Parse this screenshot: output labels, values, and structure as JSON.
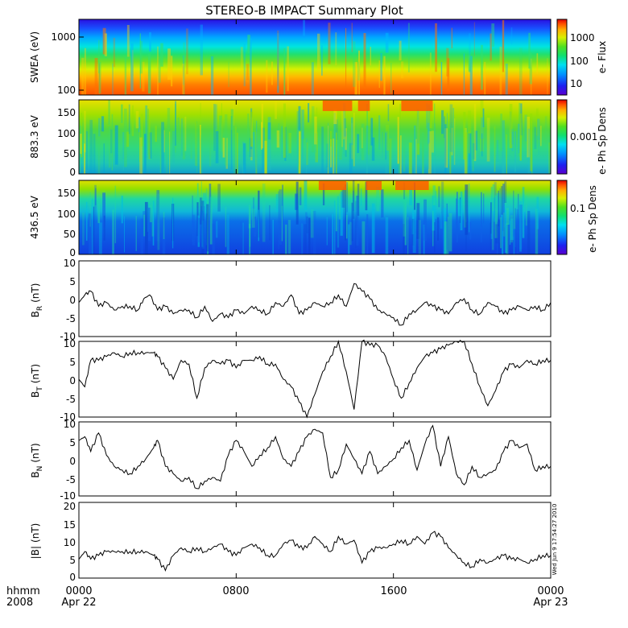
{
  "title": "STEREO-B IMPACT Summary Plot",
  "timestamp": "Wed Jun  9 17:54:27 2010",
  "time_axis": {
    "row1": [
      "hhmm",
      "0000",
      "0800",
      "1600",
      "0000"
    ],
    "row2": [
      "2008",
      "Apr 22",
      "Apr 23"
    ]
  },
  "chart_data": [
    {
      "type": "heatmap",
      "name": "swea",
      "ylabel": "SWEA (eV)",
      "scale": "log",
      "ylim": [
        95,
        2200
      ],
      "yticks": [
        "1000",
        "100"
      ],
      "colorbar_label": "e- Flux",
      "colorbar_ticks": [
        "1000",
        "100",
        "10"
      ],
      "x_range_hours": [
        0,
        24
      ]
    },
    {
      "type": "heatmap",
      "name": "pad883",
      "ylabel": "883.3 eV",
      "ylim": [
        0,
        180
      ],
      "yticks": [
        "150",
        "100",
        "50",
        "0"
      ],
      "colorbar_label": "e- Ph Sp Dens",
      "colorbar_ticks": [
        "0.001"
      ],
      "high_flux_intervals_hours": [
        [
          12.4,
          13.9
        ],
        [
          14.2,
          14.8
        ],
        [
          16.4,
          18.0
        ]
      ]
    },
    {
      "type": "heatmap",
      "name": "pad436",
      "ylabel": "436.5 eV",
      "ylim": [
        0,
        180
      ],
      "yticks": [
        "150",
        "100",
        "50",
        "0"
      ],
      "colorbar_label": "e- Ph Sp Dens",
      "colorbar_ticks": [
        "0.1"
      ],
      "high_flux_intervals_hours": [
        [
          12.2,
          13.6
        ],
        [
          14.6,
          15.4
        ],
        [
          16.1,
          17.8
        ]
      ]
    },
    {
      "type": "line",
      "name": "BR",
      "ylabel_main": "B",
      "ylabel_sub": "R",
      "ylabel_unit": "(nT)",
      "ylim": [
        -10,
        10
      ],
      "yticks": [
        "10",
        "5",
        "0",
        "-5",
        "-10"
      ],
      "x": [
        0,
        0.3,
        0.6,
        1.0,
        1.4,
        1.8,
        2.2,
        2.6,
        3.0,
        3.3,
        3.6,
        4.0,
        4.4,
        4.8,
        5.2,
        5.6,
        6.0,
        6.4,
        6.8,
        7.2,
        7.6,
        8.0,
        8.4,
        8.8,
        9.2,
        9.6,
        10.0,
        10.4,
        10.8,
        11.2,
        11.6,
        12.0,
        12.4,
        12.8,
        13.2,
        13.6,
        14.0,
        14.4,
        14.8,
        15.2,
        15.6,
        16.0,
        16.4,
        16.8,
        17.2,
        17.6,
        18.0,
        18.4,
        18.8,
        19.2,
        19.6,
        20.0,
        20.4,
        20.8,
        21.2,
        21.6,
        22.0,
        22.4,
        22.8,
        23.2,
        23.6,
        24.0
      ],
      "y": [
        -1,
        1,
        2,
        -2,
        -1,
        -3,
        -2,
        -2,
        -3,
        0,
        1,
        -3,
        -2,
        -4,
        -3,
        -3,
        -5,
        -2,
        -6,
        -4,
        -5,
        -3,
        -4,
        -2,
        -3,
        -4,
        -1,
        -2,
        1,
        -4,
        -3,
        -1,
        -2,
        -1,
        1,
        -2,
        4,
        2,
        0,
        -3,
        -4,
        -5,
        -7,
        -4,
        -3,
        -1,
        -2,
        -3,
        -4,
        -1,
        0,
        -3,
        -4,
        -1,
        -2,
        -4,
        -3,
        -2,
        -3,
        -2,
        -3,
        -1
      ]
    },
    {
      "type": "line",
      "name": "BT",
      "ylabel_main": "B",
      "ylabel_sub": "T",
      "ylabel_unit": "(nT)",
      "ylim": [
        -10,
        10
      ],
      "yticks": [
        "10",
        "5",
        "0",
        "-5",
        "-10"
      ],
      "x": [
        0,
        0.3,
        0.6,
        1.0,
        1.4,
        1.8,
        2.2,
        2.6,
        3.0,
        3.4,
        3.8,
        4.0,
        4.4,
        4.8,
        5.2,
        5.6,
        6.0,
        6.4,
        6.8,
        7.2,
        7.6,
        8.0,
        8.4,
        8.8,
        9.2,
        9.6,
        10.0,
        10.4,
        10.8,
        11.2,
        11.6,
        12.0,
        12.4,
        12.8,
        13.2,
        13.6,
        14.0,
        14.4,
        14.8,
        15.2,
        15.6,
        16.0,
        16.4,
        16.8,
        17.2,
        17.6,
        18.0,
        18.4,
        18.8,
        19.2,
        19.6,
        20.0,
        20.4,
        20.8,
        21.2,
        21.6,
        22.0,
        22.4,
        22.8,
        23.2,
        23.6,
        24.0
      ],
      "y": [
        0,
        -2,
        5,
        5,
        6,
        7,
        6,
        7,
        7,
        7,
        7,
        6,
        3,
        0,
        5,
        4,
        -5,
        3,
        5,
        4,
        5,
        3,
        5,
        5,
        6,
        4,
        4,
        0,
        -2,
        -6,
        -10,
        -4,
        2,
        6,
        10,
        2,
        -8,
        10,
        9,
        9,
        6,
        0,
        -5,
        -1,
        3,
        6,
        7,
        8,
        9,
        10,
        10,
        4,
        -2,
        -7,
        -3,
        2,
        4,
        3,
        5,
        4,
        5,
        5
      ]
    },
    {
      "type": "line",
      "name": "BN",
      "ylabel_main": "B",
      "ylabel_sub": "N",
      "ylabel_unit": "(nT)",
      "ylim": [
        -10,
        10
      ],
      "yticks": [
        "10",
        "5",
        "0",
        "-5",
        "-10"
      ],
      "x": [
        0,
        0.3,
        0.6,
        1.0,
        1.4,
        1.8,
        2.2,
        2.6,
        3.0,
        3.4,
        3.8,
        4.0,
        4.4,
        4.8,
        5.2,
        5.6,
        6.0,
        6.4,
        6.8,
        7.2,
        7.6,
        8.0,
        8.4,
        8.8,
        9.2,
        9.6,
        10.0,
        10.4,
        10.8,
        11.2,
        11.6,
        12.0,
        12.4,
        12.8,
        13.2,
        13.6,
        14.0,
        14.4,
        14.8,
        15.2,
        15.6,
        16.0,
        16.4,
        16.8,
        17.2,
        17.6,
        18.0,
        18.4,
        18.8,
        19.2,
        19.6,
        20.0,
        20.4,
        20.8,
        21.2,
        21.6,
        22.0,
        22.4,
        22.8,
        23.2,
        23.6,
        24.0
      ],
      "y": [
        5,
        6,
        2,
        7,
        1,
        -2,
        -3,
        -4,
        -2,
        0,
        3,
        5,
        -2,
        -4,
        -6,
        -5,
        -8,
        -6,
        -5,
        -6,
        1,
        5,
        2,
        -2,
        1,
        3,
        6,
        0,
        -2,
        2,
        6,
        8,
        7,
        -5,
        -3,
        4,
        0,
        -4,
        2,
        -4,
        -2,
        0,
        3,
        5,
        -3,
        4,
        9,
        -2,
        6,
        -4,
        -7,
        -2,
        -5,
        -4,
        -3,
        2,
        5,
        3,
        4,
        -3,
        -2,
        -2
      ]
    },
    {
      "type": "line",
      "name": "Bmag",
      "ylabel_main": "|B|",
      "ylabel_unit": "(nT)",
      "ylim": [
        0,
        20
      ],
      "yticks": [
        "20",
        "15",
        "10",
        "5",
        "0"
      ],
      "x": [
        0,
        0.3,
        0.6,
        1.0,
        1.4,
        1.8,
        2.2,
        2.6,
        3.0,
        3.4,
        3.8,
        4.0,
        4.4,
        4.8,
        5.2,
        5.6,
        6.0,
        6.4,
        6.8,
        7.2,
        7.6,
        8.0,
        8.4,
        8.8,
        9.2,
        9.6,
        10.0,
        10.4,
        10.8,
        11.2,
        11.6,
        12.0,
        12.4,
        12.8,
        13.2,
        13.6,
        14.0,
        14.4,
        14.8,
        15.2,
        15.6,
        16.0,
        16.4,
        16.8,
        17.2,
        17.6,
        18.0,
        18.4,
        18.8,
        19.2,
        19.6,
        20.0,
        20.4,
        20.8,
        21.2,
        21.6,
        22.0,
        22.4,
        22.8,
        23.2,
        23.6,
        24.0
      ],
      "y": [
        5,
        7,
        5,
        6,
        7,
        7,
        7,
        7,
        7,
        7,
        6,
        5,
        2,
        6,
        8,
        7,
        8,
        7,
        8,
        9,
        7,
        6,
        8,
        9,
        8,
        6,
        6,
        9,
        10,
        8,
        8,
        11,
        9,
        7,
        11,
        9,
        10,
        4,
        7,
        8,
        8,
        9,
        10,
        9,
        11,
        9,
        12,
        11,
        8,
        6,
        4,
        3,
        5,
        4,
        5,
        6,
        5,
        5,
        4,
        5,
        6,
        6
      ]
    }
  ]
}
